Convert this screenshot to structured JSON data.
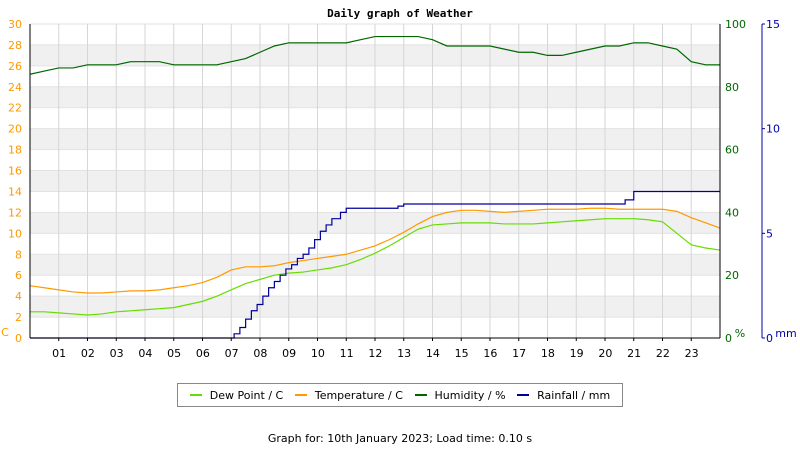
{
  "chart_data": {
    "type": "line",
    "title": "Daily graph of Weather",
    "x_ticks": [
      "01",
      "02",
      "03",
      "04",
      "05",
      "06",
      "07",
      "08",
      "09",
      "10",
      "11",
      "12",
      "13",
      "14",
      "15",
      "16",
      "17",
      "18",
      "19",
      "20",
      "21",
      "22",
      "23"
    ],
    "xlim": [
      0,
      24
    ],
    "y_left": {
      "unit_label": "C",
      "ticks": [
        0,
        2,
        4,
        6,
        8,
        10,
        12,
        14,
        16,
        18,
        20,
        22,
        24,
        26,
        28,
        30
      ],
      "ylim": [
        0,
        30
      ],
      "color": "#ff9900"
    },
    "y_mid": {
      "unit_label": "%",
      "ticks": [
        0,
        20,
        40,
        60,
        80,
        100
      ],
      "ylim": [
        0,
        100
      ],
      "color": "#006600"
    },
    "y_right": {
      "unit_label": "mm",
      "ticks": [
        0,
        5,
        10,
        15
      ],
      "ylim": [
        0,
        15
      ],
      "color": "#0000aa"
    },
    "grid": true,
    "series": [
      {
        "name": "Dew Point / C",
        "color": "#66dd00",
        "axis": "left",
        "x": [
          0,
          0.5,
          1,
          1.5,
          2,
          2.5,
          3,
          3.5,
          4,
          4.5,
          5,
          5.5,
          6,
          6.5,
          7,
          7.5,
          8,
          8.5,
          9,
          9.5,
          10,
          10.5,
          11,
          11.5,
          12,
          12.5,
          13,
          13.5,
          14,
          14.5,
          15,
          15.5,
          16,
          16.5,
          17,
          17.5,
          18,
          18.5,
          19,
          19.5,
          20,
          20.5,
          21,
          21.5,
          22,
          22.5,
          23,
          23.5,
          24
        ],
        "values": [
          2.5,
          2.5,
          2.4,
          2.3,
          2.2,
          2.3,
          2.5,
          2.6,
          2.7,
          2.8,
          2.9,
          3.2,
          3.5,
          4.0,
          4.6,
          5.2,
          5.6,
          6.0,
          6.2,
          6.3,
          6.5,
          6.7,
          7.0,
          7.5,
          8.1,
          8.8,
          9.6,
          10.4,
          10.8,
          10.9,
          11.0,
          11.0,
          11.0,
          10.9,
          10.9,
          10.9,
          11.0,
          11.1,
          11.2,
          11.3,
          11.4,
          11.4,
          11.4,
          11.3,
          11.1,
          10.0,
          8.9,
          8.6,
          8.4
        ]
      },
      {
        "name": "Temperature / C",
        "color": "#ff9900",
        "axis": "left",
        "x": [
          0,
          0.5,
          1,
          1.5,
          2,
          2.5,
          3,
          3.5,
          4,
          4.5,
          5,
          5.5,
          6,
          6.5,
          7,
          7.5,
          8,
          8.5,
          9,
          9.5,
          10,
          10.5,
          11,
          11.5,
          12,
          12.5,
          13,
          13.5,
          14,
          14.5,
          15,
          15.5,
          16,
          16.5,
          17,
          17.5,
          18,
          18.5,
          19,
          19.5,
          20,
          20.5,
          21,
          21.5,
          22,
          22.5,
          23,
          23.5,
          24
        ],
        "values": [
          5.0,
          4.8,
          4.6,
          4.4,
          4.3,
          4.3,
          4.4,
          4.5,
          4.5,
          4.6,
          4.8,
          5.0,
          5.3,
          5.8,
          6.5,
          6.8,
          6.8,
          6.9,
          7.2,
          7.4,
          7.6,
          7.8,
          8.0,
          8.4,
          8.8,
          9.4,
          10.1,
          10.9,
          11.6,
          12.0,
          12.2,
          12.2,
          12.1,
          12.0,
          12.1,
          12.2,
          12.3,
          12.3,
          12.3,
          12.4,
          12.4,
          12.3,
          12.3,
          12.3,
          12.3,
          12.1,
          11.5,
          11.0,
          10.5
        ]
      },
      {
        "name": "Humidity / %",
        "color": "#006600",
        "axis": "mid",
        "x": [
          0,
          0.5,
          1,
          1.5,
          2,
          2.5,
          3,
          3.5,
          4,
          4.5,
          5,
          5.5,
          6,
          6.5,
          7,
          7.5,
          8,
          8.5,
          9,
          9.5,
          10,
          10.5,
          11,
          11.5,
          12,
          12.5,
          13,
          13.5,
          14,
          14.5,
          15,
          15.5,
          16,
          16.5,
          17,
          17.5,
          18,
          18.5,
          19,
          19.5,
          20,
          20.5,
          21,
          21.5,
          22,
          22.5,
          23,
          23.5,
          24
        ],
        "values": [
          84,
          85,
          86,
          86,
          87,
          87,
          87,
          88,
          88,
          88,
          87,
          87,
          87,
          87,
          88,
          89,
          91,
          93,
          94,
          94,
          94,
          94,
          94,
          95,
          96,
          96,
          96,
          96,
          95,
          93,
          93,
          93,
          93,
          92,
          91,
          91,
          90,
          90,
          91,
          92,
          93,
          93,
          94,
          94,
          93,
          92,
          88,
          87,
          87
        ]
      },
      {
        "name": "Rainfall / mm",
        "color": "#000099",
        "axis": "right",
        "x": [
          0,
          1,
          2,
          3,
          4,
          5,
          6,
          6.9,
          7.1,
          7.3,
          7.5,
          7.7,
          7.9,
          8.1,
          8.3,
          8.5,
          8.7,
          8.9,
          9.1,
          9.3,
          9.5,
          9.7,
          9.9,
          10.1,
          10.3,
          10.5,
          10.8,
          11,
          11.5,
          12,
          12.5,
          12.8,
          13,
          13.5,
          14,
          15,
          16,
          17,
          18,
          19,
          20,
          20.5,
          20.7,
          21,
          22,
          23,
          24
        ],
        "values": [
          0,
          0,
          0,
          0,
          0,
          0,
          0,
          0,
          0.2,
          0.5,
          0.9,
          1.3,
          1.6,
          2.0,
          2.4,
          2.7,
          3.0,
          3.3,
          3.5,
          3.8,
          4.0,
          4.3,
          4.7,
          5.1,
          5.4,
          5.7,
          6.0,
          6.2,
          6.2,
          6.2,
          6.2,
          6.3,
          6.4,
          6.4,
          6.4,
          6.4,
          6.4,
          6.4,
          6.4,
          6.4,
          6.4,
          6.4,
          6.6,
          7.0,
          7.0,
          7.0,
          7.0
        ]
      }
    ]
  },
  "legend": [
    {
      "label": "Dew Point / C",
      "color": "#66dd00"
    },
    {
      "label": "Temperature / C",
      "color": "#ff9900"
    },
    {
      "label": "Humidity / %",
      "color": "#006600"
    },
    {
      "label": "Rainfall / mm",
      "color": "#000099"
    }
  ],
  "footer": "Graph for: 10th January 2023; Load time: 0.10 s"
}
